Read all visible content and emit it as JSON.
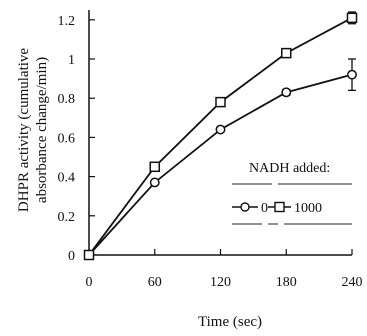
{
  "chart_data": {
    "type": "line",
    "xlabel": "Time (sec)",
    "ylabel_lines": [
      "DHPR activity (cumulative",
      "absorbance change/min)"
    ],
    "x": [
      0,
      60,
      120,
      180,
      240
    ],
    "xlim": [
      0,
      240
    ],
    "ylim": [
      0,
      1.25
    ],
    "x_ticks": [
      0,
      60,
      120,
      180,
      240
    ],
    "x_tick_labels": [
      "0",
      "60",
      "120",
      "180",
      "240"
    ],
    "y_ticks": [
      0,
      0.2,
      0.4,
      0.6,
      0.8,
      1.0,
      1.2
    ],
    "y_tick_labels": [
      "0",
      "0.2",
      "0.4",
      "0.6",
      "0.8",
      "1",
      "1.2"
    ],
    "legend": {
      "title": "NADH added:",
      "placement": "lower-right inside plot"
    },
    "series": [
      {
        "name": "0",
        "marker": "circle",
        "values": [
          0.0,
          0.37,
          0.64,
          0.83,
          0.92
        ],
        "errors": [
          0.0,
          0.01,
          0.01,
          0.015,
          0.08
        ]
      },
      {
        "name": "1000",
        "marker": "square",
        "values": [
          0.0,
          0.45,
          0.78,
          1.03,
          1.21
        ],
        "errors": [
          0.0,
          0.01,
          0.01,
          0.02,
          0.03
        ]
      }
    ]
  }
}
